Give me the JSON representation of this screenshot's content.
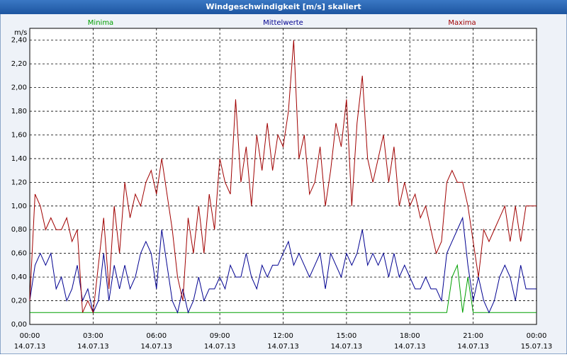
{
  "chart_data": {
    "type": "line",
    "title": "Windgeschwindigkeit [m/s] skaliert",
    "y_label": "m/s",
    "x": [
      0,
      0.25,
      0.5,
      0.75,
      1,
      1.25,
      1.5,
      1.75,
      2,
      2.25,
      2.5,
      2.75,
      3,
      3.25,
      3.5,
      3.75,
      4,
      4.25,
      4.5,
      4.75,
      5,
      5.25,
      5.5,
      5.75,
      6,
      6.25,
      6.5,
      6.75,
      7,
      7.25,
      7.5,
      7.75,
      8,
      8.25,
      8.5,
      8.75,
      9,
      9.25,
      9.5,
      9.75,
      10,
      10.25,
      10.5,
      10.75,
      11,
      11.25,
      11.5,
      11.75,
      12,
      12.25,
      12.5,
      12.75,
      13,
      13.25,
      13.5,
      13.75,
      14,
      14.25,
      14.5,
      14.75,
      15,
      15.25,
      15.5,
      15.75,
      16,
      16.25,
      16.5,
      16.75,
      17,
      17.25,
      17.5,
      17.75,
      18,
      18.25,
      18.5,
      18.75,
      19,
      19.25,
      19.5,
      19.75,
      20,
      20.25,
      20.5,
      20.75,
      21,
      21.25,
      21.5,
      21.75,
      22,
      22.25,
      22.5,
      22.75,
      23,
      23.25,
      23.5,
      23.75,
      24
    ],
    "series": [
      {
        "name": "Minima",
        "color": "#00a000",
        "values": [
          0.1,
          0.1,
          0.1,
          0.1,
          0.1,
          0.1,
          0.1,
          0.1,
          0.1,
          0.1,
          0.1,
          0.1,
          0.1,
          0.1,
          0.1,
          0.1,
          0.1,
          0.1,
          0.1,
          0.1,
          0.1,
          0.1,
          0.1,
          0.1,
          0.1,
          0.1,
          0.1,
          0.1,
          0.1,
          0.1,
          0.1,
          0.1,
          0.1,
          0.1,
          0.1,
          0.1,
          0.1,
          0.1,
          0.1,
          0.1,
          0.1,
          0.1,
          0.1,
          0.1,
          0.1,
          0.1,
          0.1,
          0.1,
          0.1,
          0.1,
          0.1,
          0.1,
          0.1,
          0.1,
          0.1,
          0.1,
          0.1,
          0.1,
          0.1,
          0.1,
          0.1,
          0.1,
          0.1,
          0.1,
          0.1,
          0.1,
          0.1,
          0.1,
          0.1,
          0.1,
          0.1,
          0.1,
          0.1,
          0.1,
          0.1,
          0.1,
          0.1,
          0.1,
          0.1,
          0.1,
          0.4,
          0.5,
          0.1,
          0.4,
          0.1,
          0.1,
          0.1,
          0.1,
          0.1,
          0.1,
          0.1,
          0.1,
          0.1,
          0.1,
          0.1,
          0.1,
          0.1
        ]
      },
      {
        "name": "Mittelwerte",
        "color": "#000090",
        "values": [
          0.2,
          0.5,
          0.6,
          0.5,
          0.6,
          0.3,
          0.4,
          0.2,
          0.3,
          0.5,
          0.2,
          0.3,
          0.1,
          0.2,
          0.6,
          0.2,
          0.5,
          0.3,
          0.5,
          0.3,
          0.4,
          0.6,
          0.7,
          0.6,
          0.3,
          0.8,
          0.5,
          0.2,
          0.1,
          0.3,
          0.1,
          0.2,
          0.4,
          0.2,
          0.3,
          0.3,
          0.4,
          0.3,
          0.5,
          0.4,
          0.4,
          0.6,
          0.4,
          0.3,
          0.5,
          0.4,
          0.5,
          0.5,
          0.6,
          0.7,
          0.5,
          0.6,
          0.5,
          0.4,
          0.5,
          0.6,
          0.3,
          0.6,
          0.5,
          0.4,
          0.6,
          0.5,
          0.6,
          0.8,
          0.5,
          0.6,
          0.5,
          0.6,
          0.4,
          0.6,
          0.4,
          0.5,
          0.4,
          0.3,
          0.3,
          0.4,
          0.3,
          0.3,
          0.2,
          0.6,
          0.7,
          0.8,
          0.9,
          0.5,
          0.2,
          0.4,
          0.2,
          0.1,
          0.2,
          0.4,
          0.5,
          0.4,
          0.2,
          0.5,
          0.3,
          0.3,
          0.3
        ]
      },
      {
        "name": "Maxima",
        "color": "#a00000",
        "values": [
          0.2,
          1.1,
          1.0,
          0.8,
          0.9,
          0.8,
          0.8,
          0.9,
          0.7,
          0.8,
          0.1,
          0.2,
          0.1,
          0.5,
          0.9,
          0.3,
          1.0,
          0.6,
          1.2,
          0.9,
          1.1,
          1.0,
          1.2,
          1.3,
          1.1,
          1.4,
          1.1,
          0.8,
          0.4,
          0.2,
          0.9,
          0.6,
          1.0,
          0.6,
          1.1,
          0.8,
          1.4,
          1.2,
          1.1,
          1.9,
          1.2,
          1.5,
          1.0,
          1.6,
          1.3,
          1.7,
          1.3,
          1.6,
          1.5,
          1.8,
          2.4,
          1.4,
          1.6,
          1.1,
          1.2,
          1.5,
          1.0,
          1.3,
          1.7,
          1.5,
          1.9,
          1.0,
          1.7,
          2.1,
          1.4,
          1.2,
          1.4,
          1.6,
          1.2,
          1.5,
          1.0,
          1.2,
          1.0,
          1.1,
          0.9,
          1.0,
          0.8,
          0.6,
          0.7,
          1.2,
          1.3,
          1.2,
          1.2,
          1.0,
          0.7,
          0.4,
          0.8,
          0.7,
          0.8,
          0.9,
          1.0,
          0.7,
          1.0,
          0.7,
          1.0,
          1.0,
          1.0
        ]
      }
    ],
    "xlim": [
      0,
      24
    ],
    "xticks": [
      {
        "value": 0,
        "label": "00:00",
        "date": "14.07.13"
      },
      {
        "value": 3,
        "label": "03:00",
        "date": "14.07.13"
      },
      {
        "value": 6,
        "label": "06:00",
        "date": "14.07.13"
      },
      {
        "value": 9,
        "label": "09:00",
        "date": "14.07.13"
      },
      {
        "value": 12,
        "label": "12:00",
        "date": "14.07.13"
      },
      {
        "value": 15,
        "label": "15:00",
        "date": "14.07.13"
      },
      {
        "value": 18,
        "label": "18:00",
        "date": "14.07.13"
      },
      {
        "value": 21,
        "label": "21:00",
        "date": "14.07.13"
      },
      {
        "value": 24,
        "label": "00:00",
        "date": "15.07.13"
      }
    ],
    "ylim": [
      0,
      2.5
    ],
    "yticks": [
      {
        "value": 0,
        "label": "0,00"
      },
      {
        "value": 0.2,
        "label": "0,20"
      },
      {
        "value": 0.4,
        "label": "0,40"
      },
      {
        "value": 0.6,
        "label": "0,60"
      },
      {
        "value": 0.8,
        "label": "0,80"
      },
      {
        "value": 1.0,
        "label": "1,00"
      },
      {
        "value": 1.2,
        "label": "1,20"
      },
      {
        "value": 1.4,
        "label": "1,40"
      },
      {
        "value": 1.6,
        "label": "1,60"
      },
      {
        "value": 1.8,
        "label": "1,80"
      },
      {
        "value": 2.0,
        "label": "2,00"
      },
      {
        "value": 2.2,
        "label": "2,20"
      },
      {
        "value": 2.4,
        "label": "2,40"
      }
    ],
    "grid": true
  }
}
